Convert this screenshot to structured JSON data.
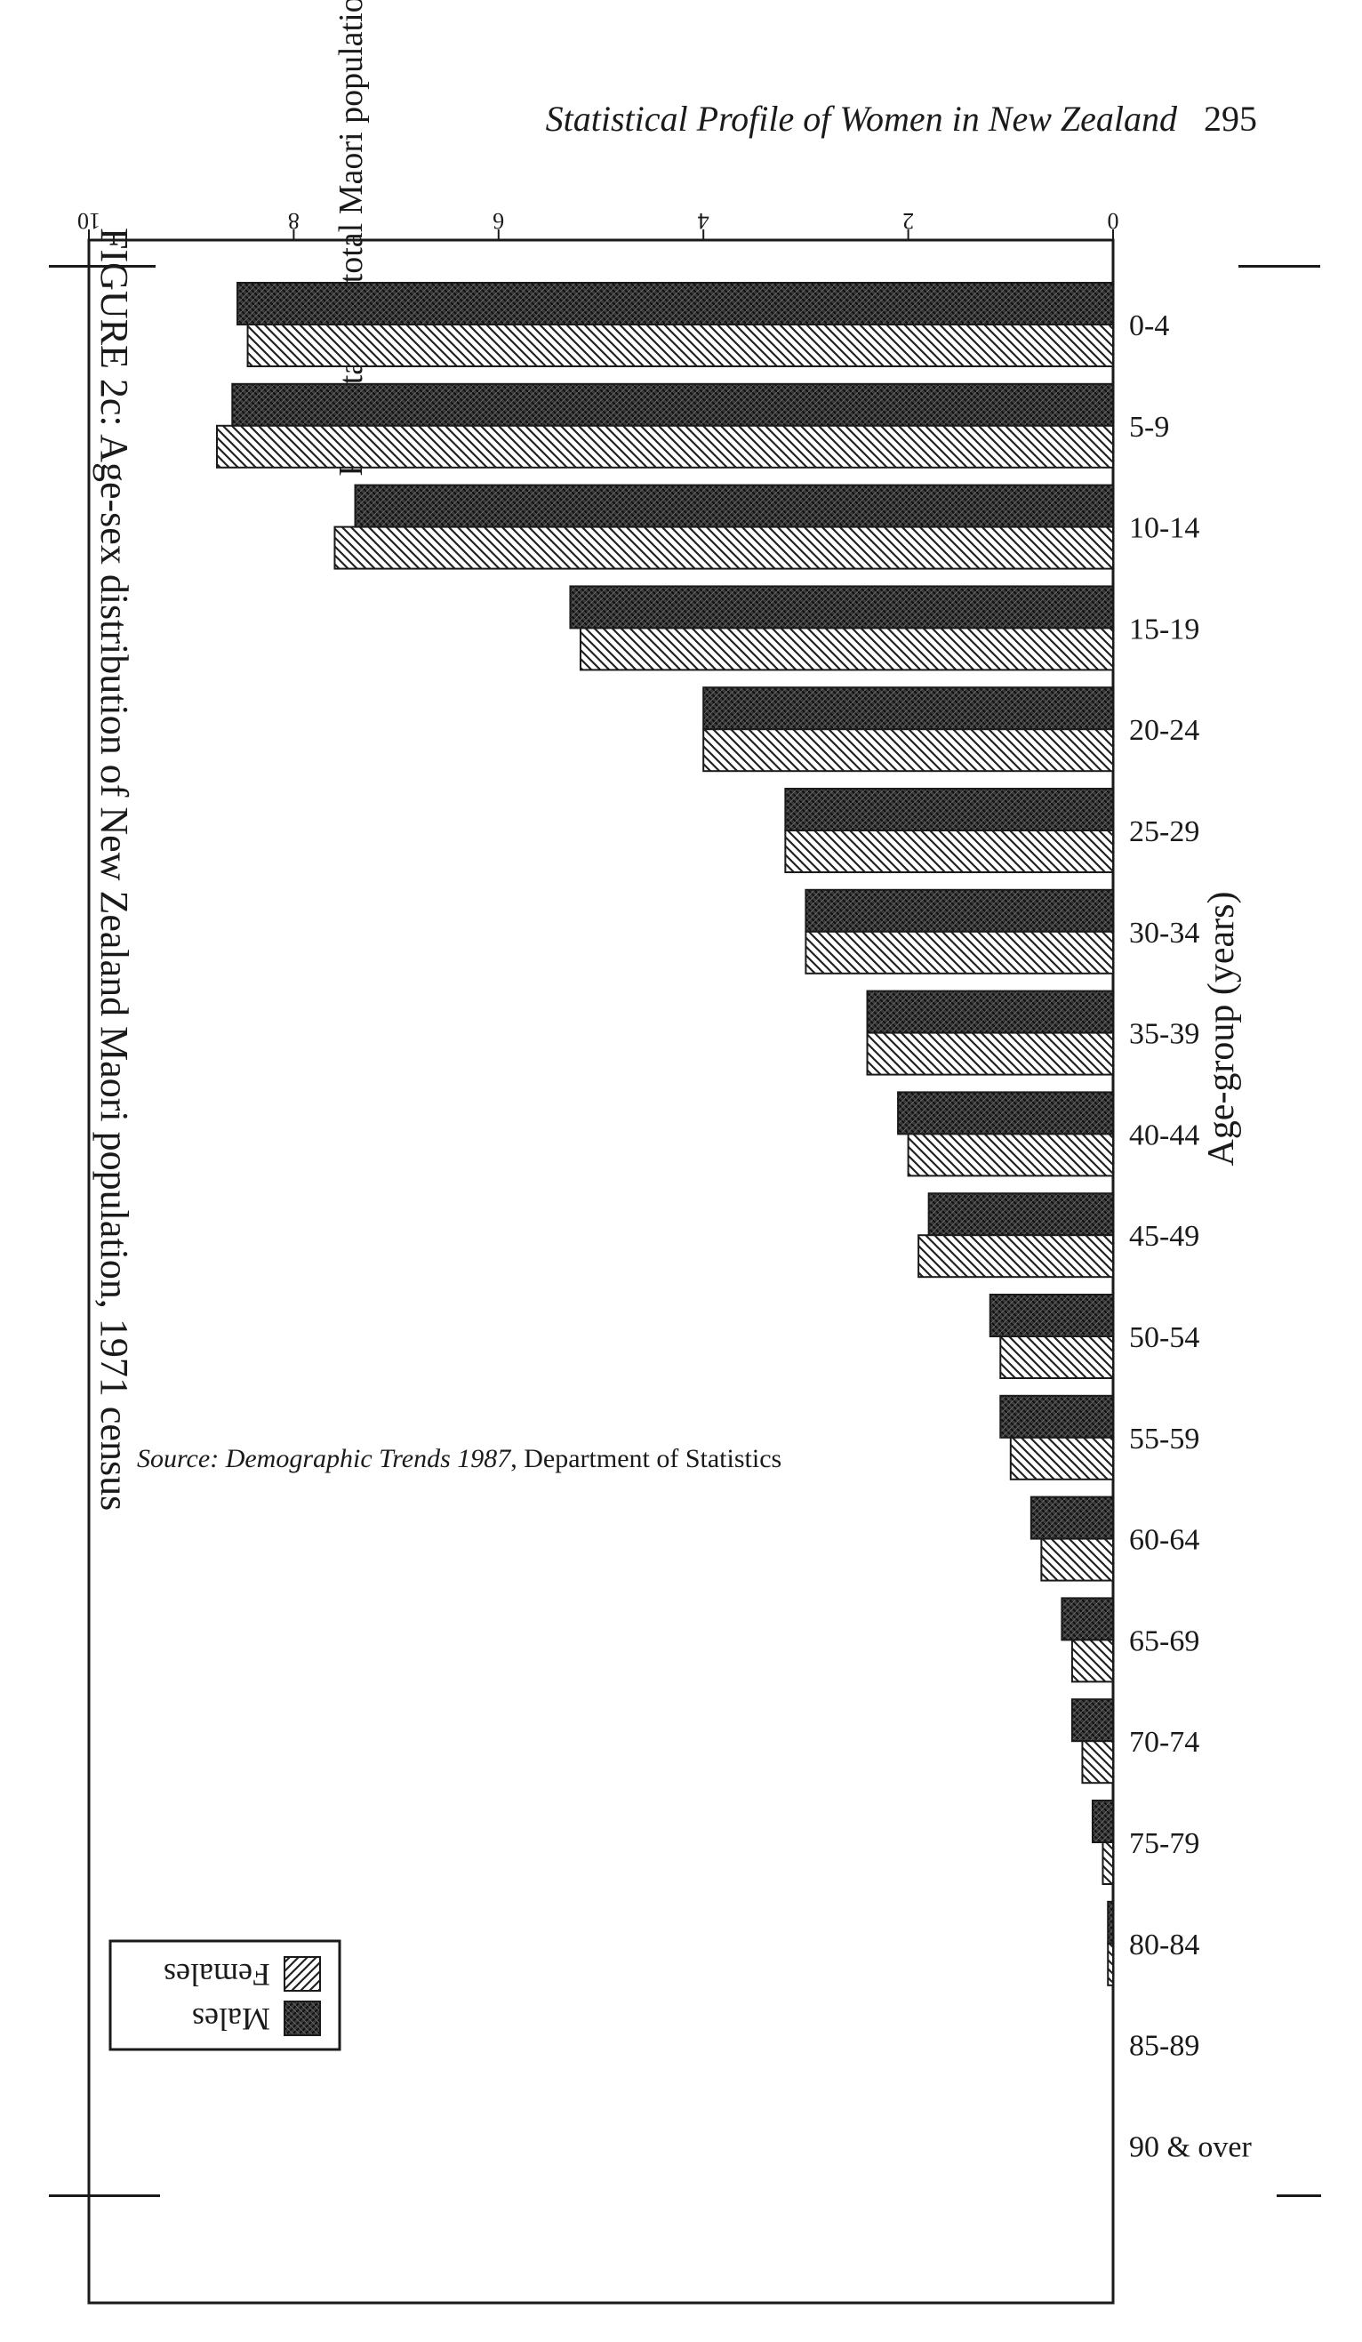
{
  "page": {
    "header_title": "Statistical Profile of Women in New Zealand",
    "page_number": "295"
  },
  "figure": {
    "caption": "FIGURE 2c: Age-sex distribution of New Zealand Maori population, 1971 census",
    "source_label": "Source:",
    "source_italic": "Demographic Trends 1987",
    "source_rest": ", Department of Statistics"
  },
  "chart_data": {
    "type": "bar",
    "orientation": "horizontal",
    "title": "FIGURE 2c: Age-sex distribution of New Zealand Maori population, 1971 census",
    "xlabel": "Age-group (years)",
    "ylabel": "Percentage of total Maori population",
    "ylim": [
      0,
      10
    ],
    "yticks": [
      0,
      2,
      4,
      6,
      8,
      10
    ],
    "categories": [
      "0-4",
      "5-9",
      "10-14",
      "15-19",
      "20-24",
      "25-29",
      "30-34",
      "35-39",
      "40-44",
      "45-49",
      "50-54",
      "55-59",
      "60-64",
      "65-69",
      "70-74",
      "75-79",
      "80-84",
      "85-89",
      "90 & over"
    ],
    "series": [
      {
        "name": "Males",
        "pattern": "dense-crosshatch",
        "color": "#2a2a2a",
        "values": [
          8.55,
          8.6,
          7.4,
          5.3,
          4.0,
          3.2,
          3.0,
          2.4,
          2.1,
          1.8,
          1.2,
          1.1,
          0.8,
          0.5,
          0.4,
          0.2,
          0.05,
          0.0,
          0.0
        ]
      },
      {
        "name": "Females",
        "pattern": "diagonal-hatch",
        "color": "#ffffff",
        "values": [
          8.45,
          8.75,
          7.6,
          5.2,
          4.0,
          3.2,
          3.0,
          2.4,
          2.0,
          1.9,
          1.1,
          1.0,
          0.7,
          0.4,
          0.3,
          0.1,
          0.05,
          0.0,
          0.0
        ]
      }
    ],
    "legend": {
      "position": "top-right"
    },
    "grid": false
  }
}
